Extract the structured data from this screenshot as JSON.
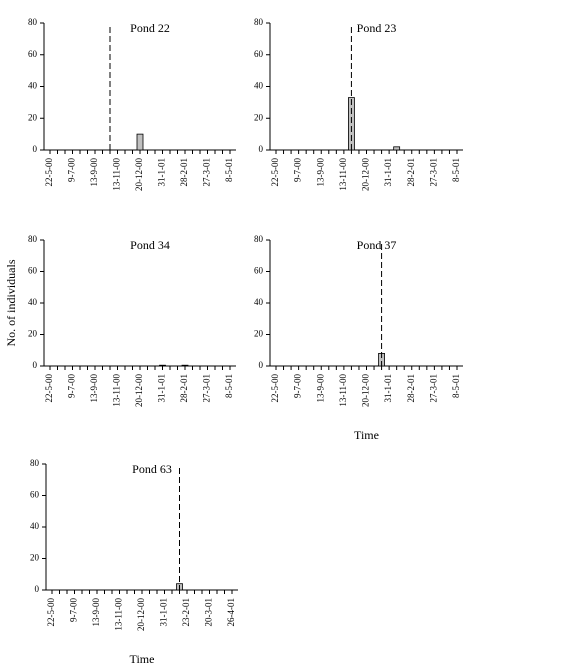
{
  "chart_data": [
    {
      "type": "bar",
      "title": "Pond 22",
      "categories": [
        "22-5-00",
        null,
        null,
        "9-7-00",
        null,
        null,
        "13-9-00",
        null,
        null,
        "13-11-00",
        null,
        null,
        "20-12-00",
        null,
        null,
        "31-1-01",
        null,
        null,
        "28-2-01",
        null,
        null,
        "27-3-01",
        null,
        null,
        "8-5-01"
      ],
      "values": [
        0,
        0,
        0,
        0,
        0,
        0,
        0,
        0,
        0,
        0,
        0,
        0,
        10,
        0,
        0,
        0,
        0,
        0,
        0,
        0,
        0,
        0,
        0,
        0,
        0
      ],
      "color": "#c0c0c0",
      "ylim": [
        0,
        80
      ],
      "yticks": [
        0,
        20,
        40,
        60,
        80
      ],
      "marker_at": 8
    },
    {
      "type": "bar",
      "title": "Pond 23",
      "categories": [
        "22-5-00",
        null,
        null,
        "9-7-00",
        null,
        null,
        "13-9-00",
        null,
        null,
        "13-11-00",
        null,
        null,
        "20-12-00",
        null,
        null,
        "31-1-01",
        null,
        null,
        "28-2-01",
        null,
        null,
        "27-3-01",
        null,
        null,
        "8-5-01"
      ],
      "values": [
        0,
        0,
        0,
        0,
        0,
        0,
        0,
        0,
        0,
        0,
        33,
        0,
        0,
        0,
        0,
        0,
        2,
        0,
        0,
        0,
        0,
        0,
        0,
        0,
        0
      ],
      "color": "#c0c0c0",
      "ylim": [
        0,
        80
      ],
      "yticks": [
        0,
        20,
        40,
        60,
        80
      ],
      "marker_at": 10
    },
    {
      "type": "bar",
      "title": "Pond 34",
      "ylabel": "No. of individuals",
      "categories": [
        "22-5-00",
        null,
        null,
        "9-7-00",
        null,
        null,
        "13-9-00",
        null,
        null,
        "13-11-00",
        null,
        null,
        "20-12-00",
        null,
        null,
        "31-1-01",
        null,
        null,
        "28-2-01",
        null,
        null,
        "27-3-01",
        null,
        null,
        "8-5-01"
      ],
      "values": [
        0,
        0,
        0,
        0,
        0,
        0,
        0,
        0,
        0,
        0,
        0,
        0,
        0,
        0,
        0,
        0.5,
        0,
        0,
        0.5,
        0,
        0,
        0,
        0,
        0,
        0
      ],
      "color": "#c0c0c0",
      "ylim": [
        0,
        80
      ],
      "yticks": [
        0,
        20,
        40,
        60,
        80
      ]
    },
    {
      "type": "bar",
      "title": "Pond 37",
      "xlabel": "Time",
      "categories": [
        "22-5-00",
        null,
        null,
        "9-7-00",
        null,
        null,
        "13-9-00",
        null,
        null,
        "13-11-00",
        null,
        null,
        "20-12-00",
        null,
        null,
        "31-1-01",
        null,
        null,
        "28-2-01",
        null,
        null,
        "27-3-01",
        null,
        null,
        "8-5-01"
      ],
      "values": [
        0,
        0,
        0,
        0,
        0,
        0,
        0,
        0,
        0,
        0,
        0,
        0,
        0,
        0,
        8,
        0,
        0,
        0,
        0,
        0,
        0,
        0,
        0,
        0,
        0
      ],
      "color": "#c0c0c0",
      "ylim": [
        0,
        80
      ],
      "yticks": [
        0,
        20,
        40,
        60,
        80
      ],
      "marker_at": 14
    },
    {
      "type": "bar",
      "title": "Pond 63",
      "xlabel": "Time",
      "categories": [
        "22-5-00",
        null,
        null,
        "9-7-00",
        null,
        null,
        "13-9-00",
        null,
        null,
        "13-11-00",
        null,
        null,
        "20-12-00",
        null,
        null,
        "31-1-01",
        null,
        null,
        "23-2-01",
        null,
        null,
        "20-3-01",
        null,
        null,
        "26-4-01"
      ],
      "values": [
        0,
        0,
        0,
        0,
        0,
        0,
        0,
        0,
        0,
        0,
        0,
        0,
        0,
        0,
        0,
        0,
        0,
        4,
        0,
        0,
        0,
        0,
        0,
        0,
        0
      ],
      "color": "#c0c0c0",
      "ylim": [
        0,
        80
      ],
      "yticks": [
        0,
        20,
        40,
        60,
        80
      ],
      "marker_at": 17
    }
  ]
}
